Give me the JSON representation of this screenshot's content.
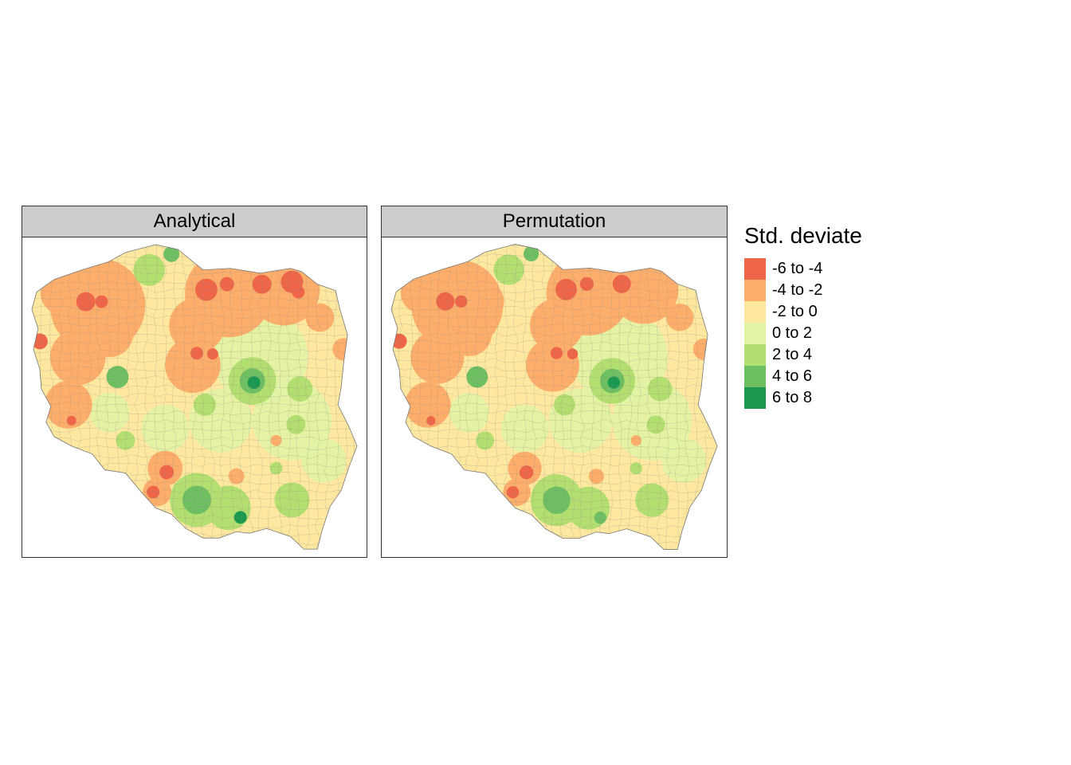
{
  "panels": [
    {
      "title": "Analytical"
    },
    {
      "title": "Permutation"
    }
  ],
  "legend": {
    "title": "Std. deviate",
    "items": [
      {
        "label": "-6 to -4",
        "color": "#ef6548"
      },
      {
        "label": "-4 to -2",
        "color": "#fdae6b"
      },
      {
        "label": "-2 to 0",
        "color": "#fee8a0"
      },
      {
        "label": "0 to 2",
        "color": "#e1f3a4"
      },
      {
        "label": "2 to 4",
        "color": "#b3de70"
      },
      {
        "label": "4 to 6",
        "color": "#6dbf62"
      },
      {
        "label": "6 to 8",
        "color": "#1a9850"
      }
    ]
  }
}
